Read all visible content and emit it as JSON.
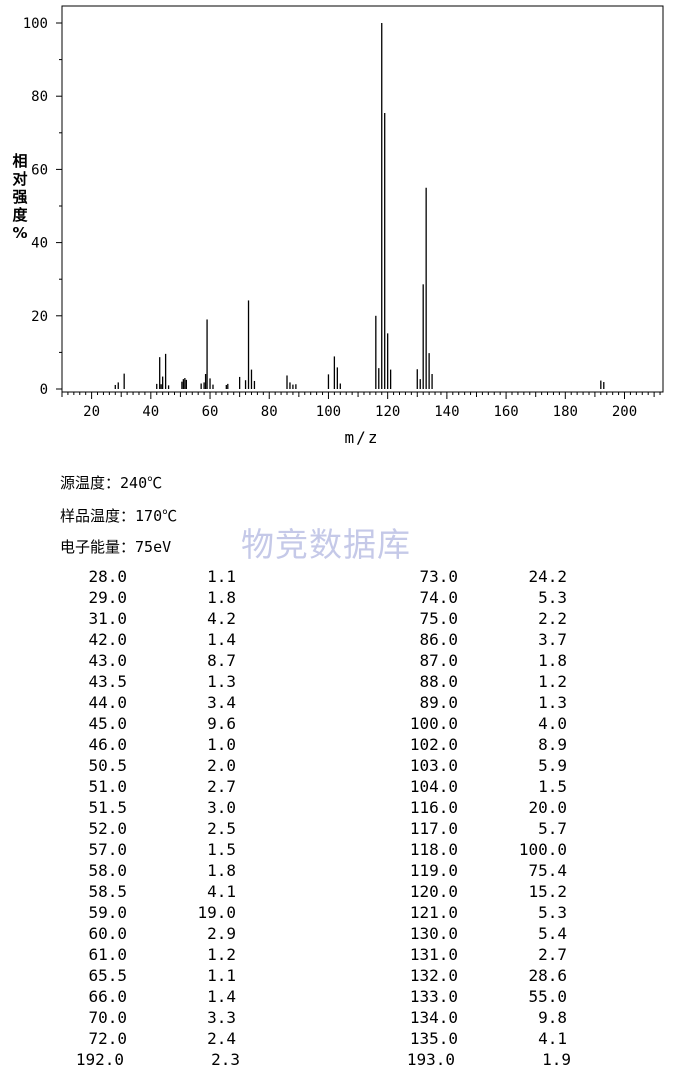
{
  "chart_data": {
    "type": "bar",
    "xlabel": "m/z",
    "ylabel": "相对强度%",
    "xlim": [
      10,
      213
    ],
    "ylim": [
      0,
      104
    ],
    "x_ticks": [
      20,
      40,
      60,
      80,
      100,
      120,
      140,
      160,
      180,
      200
    ],
    "y_ticks": [
      0,
      20,
      40,
      60,
      80,
      100
    ],
    "grid": false,
    "x": [
      28.0,
      29.0,
      31.0,
      42.0,
      43.0,
      43.5,
      44.0,
      45.0,
      46.0,
      50.5,
      51.0,
      51.5,
      52.0,
      57.0,
      58.0,
      58.5,
      59.0,
      60.0,
      61.0,
      65.5,
      66.0,
      70.0,
      72.0,
      73.0,
      74.0,
      75.0,
      86.0,
      87.0,
      88.0,
      89.0,
      100.0,
      102.0,
      103.0,
      104.0,
      116.0,
      117.0,
      118.0,
      119.0,
      120.0,
      121.0,
      130.0,
      131.0,
      132.0,
      133.0,
      134.0,
      135.0,
      192.0,
      193.0
    ],
    "values": [
      1.1,
      1.8,
      4.2,
      1.4,
      8.7,
      1.3,
      3.4,
      9.6,
      1.0,
      2.0,
      2.7,
      3.0,
      2.5,
      1.5,
      1.8,
      4.1,
      19.0,
      2.9,
      1.2,
      1.1,
      1.4,
      3.3,
      2.4,
      24.2,
      5.3,
      2.2,
      3.7,
      1.8,
      1.2,
      1.3,
      4.0,
      8.9,
      5.9,
      1.5,
      20.0,
      5.7,
      100.0,
      75.4,
      15.2,
      5.3,
      5.4,
      2.7,
      28.6,
      55.0,
      9.8,
      4.1,
      2.3,
      1.9
    ]
  },
  "conditions": [
    {
      "label": "源温度：",
      "value": "240℃"
    },
    {
      "label": "样品温度：",
      "value": "170℃"
    },
    {
      "label": "电子能量：",
      "value": "75eV"
    }
  ],
  "watermark": "物竞数据库",
  "peak_table": {
    "left": [
      {
        "mz": "28.0",
        "intensity": "1.1"
      },
      {
        "mz": "29.0",
        "intensity": "1.8"
      },
      {
        "mz": "31.0",
        "intensity": "4.2"
      },
      {
        "mz": "42.0",
        "intensity": "1.4"
      },
      {
        "mz": "43.0",
        "intensity": "8.7"
      },
      {
        "mz": "43.5",
        "intensity": "1.3"
      },
      {
        "mz": "44.0",
        "intensity": "3.4"
      },
      {
        "mz": "45.0",
        "intensity": "9.6"
      },
      {
        "mz": "46.0",
        "intensity": "1.0"
      },
      {
        "mz": "50.5",
        "intensity": "2.0"
      },
      {
        "mz": "51.0",
        "intensity": "2.7"
      },
      {
        "mz": "51.5",
        "intensity": "3.0"
      },
      {
        "mz": "52.0",
        "intensity": "2.5"
      },
      {
        "mz": "57.0",
        "intensity": "1.5"
      },
      {
        "mz": "58.0",
        "intensity": "1.8"
      },
      {
        "mz": "58.5",
        "intensity": "4.1"
      },
      {
        "mz": "59.0",
        "intensity": "19.0"
      },
      {
        "mz": "60.0",
        "intensity": "2.9"
      },
      {
        "mz": "61.0",
        "intensity": "1.2"
      },
      {
        "mz": "65.5",
        "intensity": "1.1"
      },
      {
        "mz": "66.0",
        "intensity": "1.4"
      },
      {
        "mz": "70.0",
        "intensity": "3.3"
      },
      {
        "mz": "72.0",
        "intensity": "2.4"
      },
      {
        "mz": "192.0",
        "intensity": "2.3"
      }
    ],
    "right": [
      {
        "mz": "73.0",
        "intensity": "24.2"
      },
      {
        "mz": "74.0",
        "intensity": "5.3"
      },
      {
        "mz": "75.0",
        "intensity": "2.2"
      },
      {
        "mz": "86.0",
        "intensity": "3.7"
      },
      {
        "mz": "87.0",
        "intensity": "1.8"
      },
      {
        "mz": "88.0",
        "intensity": "1.2"
      },
      {
        "mz": "89.0",
        "intensity": "1.3"
      },
      {
        "mz": "100.0",
        "intensity": "4.0"
      },
      {
        "mz": "102.0",
        "intensity": "8.9"
      },
      {
        "mz": "103.0",
        "intensity": "5.9"
      },
      {
        "mz": "104.0",
        "intensity": "1.5"
      },
      {
        "mz": "116.0",
        "intensity": "20.0"
      },
      {
        "mz": "117.0",
        "intensity": "5.7"
      },
      {
        "mz": "118.0",
        "intensity": "100.0"
      },
      {
        "mz": "119.0",
        "intensity": "75.4"
      },
      {
        "mz": "120.0",
        "intensity": "15.2"
      },
      {
        "mz": "121.0",
        "intensity": "5.3"
      },
      {
        "mz": "130.0",
        "intensity": "5.4"
      },
      {
        "mz": "131.0",
        "intensity": "2.7"
      },
      {
        "mz": "132.0",
        "intensity": "28.6"
      },
      {
        "mz": "133.0",
        "intensity": "55.0"
      },
      {
        "mz": "134.0",
        "intensity": "9.8"
      },
      {
        "mz": "135.0",
        "intensity": "4.1"
      },
      {
        "mz": "193.0",
        "intensity": "1.9"
      }
    ]
  }
}
